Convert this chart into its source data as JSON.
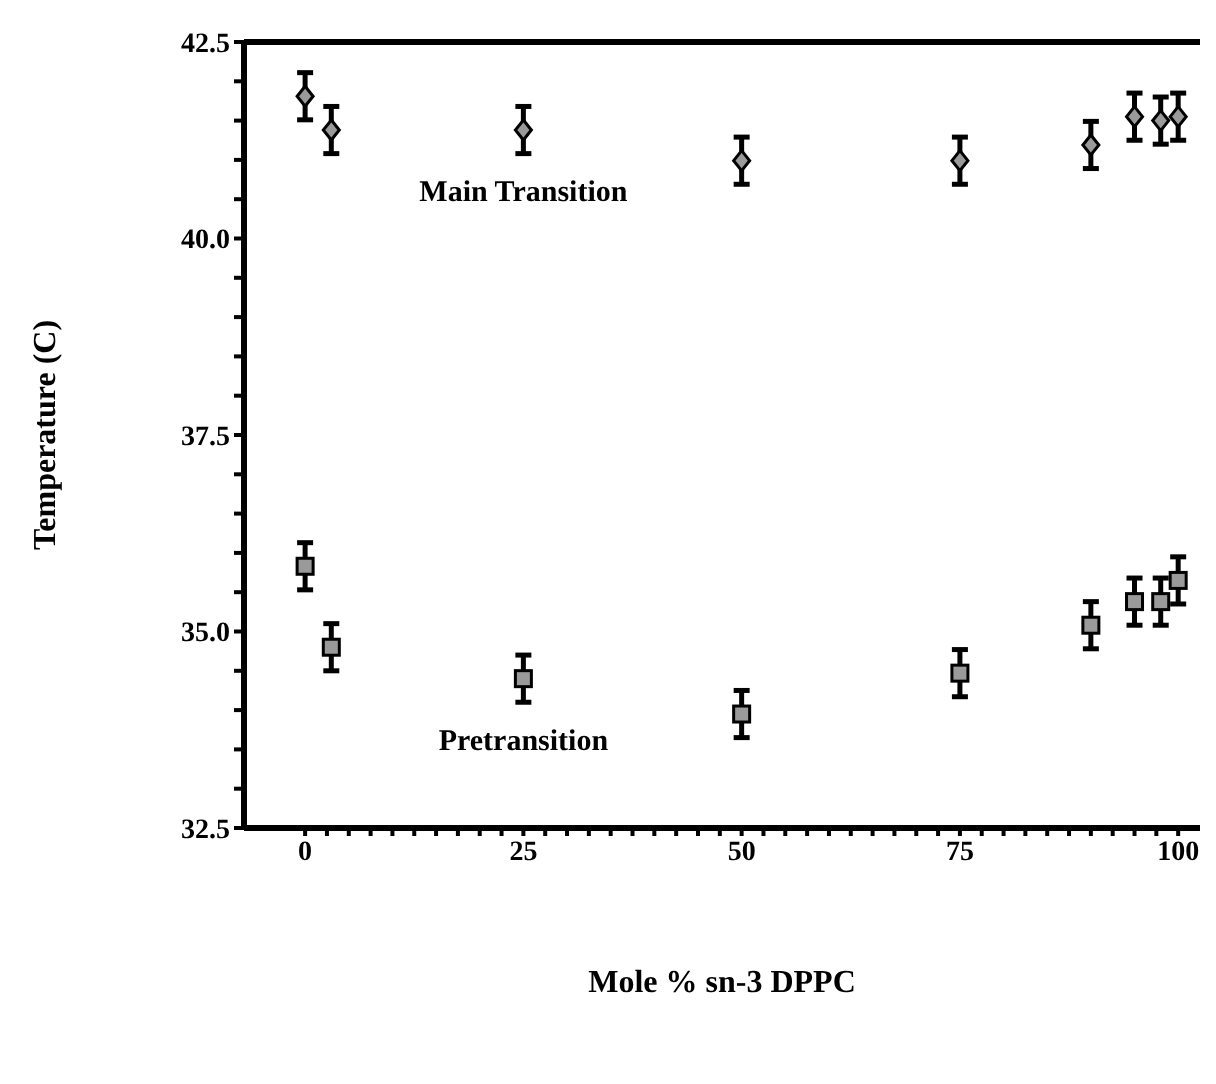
{
  "chart_data": {
    "type": "scatter",
    "xlabel": "Mole % sn-3 DPPC",
    "ylabel": "Temperature (C)",
    "x": [
      0,
      3,
      25,
      50,
      75,
      90,
      95,
      98,
      100
    ],
    "series": [
      {
        "name": "Main Transition",
        "color": "#000000",
        "marker": "diamond",
        "values": [
          41.81,
          41.38,
          41.38,
          40.99,
          40.99,
          41.19,
          41.55,
          41.5,
          41.55
        ],
        "errors": [
          0.3,
          0.3,
          0.3,
          0.3,
          0.3,
          0.3,
          0.3,
          0.3,
          0.3
        ]
      },
      {
        "name": "Pretransition",
        "color": "#000000",
        "marker": "square",
        "values": [
          35.83,
          34.8,
          34.4,
          33.95,
          34.47,
          35.08,
          35.38,
          35.38,
          35.65
        ],
        "errors": [
          0.3,
          0.3,
          0.3,
          0.3,
          0.3,
          0.3,
          0.3,
          0.3,
          0.3
        ]
      }
    ],
    "xlim": [
      -7,
      102.5
    ],
    "xticks": [
      0,
      {
        "value": 2.5,
        "label": null
      },
      {
        "value": 5,
        "label": null
      },
      {
        "value": 7.5,
        "label": null
      },
      {
        "value": 10,
        "label": null
      },
      {
        "value": 12.5,
        "label": null
      },
      {
        "value": 15,
        "label": null
      },
      {
        "value": 17.5,
        "label": null
      },
      {
        "value": 20,
        "label": null
      },
      {
        "value": 22.5,
        "label": null
      },
      25,
      {
        "value": 27.5,
        "label": null
      },
      {
        "value": 30,
        "label": null
      },
      {
        "value": 32.5,
        "label": null
      },
      {
        "value": 35,
        "label": null
      },
      {
        "value": 37.5,
        "label": null
      },
      {
        "value": 40,
        "label": null
      },
      {
        "value": 42.5,
        "label": null
      },
      {
        "value": 45,
        "label": null
      },
      {
        "value": 47.5,
        "label": null
      },
      50,
      {
        "value": 52.5,
        "label": null
      },
      {
        "value": 55,
        "label": null
      },
      {
        "value": 57.5,
        "label": null
      },
      {
        "value": 60,
        "label": null
      },
      {
        "value": 62.5,
        "label": null
      },
      {
        "value": 65,
        "label": null
      },
      {
        "value": 67.5,
        "label": null
      },
      {
        "value": 70,
        "label": null
      },
      {
        "value": 72.5,
        "label": null
      },
      75,
      {
        "value": 77.5,
        "label": null
      },
      {
        "value": 80,
        "label": null
      },
      {
        "value": 82.5,
        "label": null
      },
      {
        "value": 85,
        "label": null
      },
      {
        "value": 87.5,
        "label": null
      },
      {
        "value": 90,
        "label": null
      },
      {
        "value": 92.5,
        "label": null
      },
      {
        "value": 95,
        "label": null
      },
      {
        "value": 97.5,
        "label": null
      },
      100
    ],
    "ylim": [
      32.5,
      42.5
    ],
    "yticks": [
      32.5,
      {
        "value": 33,
        "label": null
      },
      {
        "value": 33.5,
        "label": null
      },
      {
        "value": 34,
        "label": null
      },
      {
        "value": 34.5,
        "label": null
      },
      {
        "value": 35,
        "label": "35.0"
      },
      {
        "value": 35.5,
        "label": null
      },
      {
        "value": 36,
        "label": null
      },
      {
        "value": 36.5,
        "label": null
      },
      {
        "value": 37,
        "label": null
      },
      37.5,
      {
        "value": 38,
        "label": null
      },
      {
        "value": 38.5,
        "label": null
      },
      {
        "value": 39,
        "label": null
      },
      {
        "value": 39.5,
        "label": null
      },
      {
        "value": 40,
        "label": "40.0"
      },
      {
        "value": 40.5,
        "label": null
      },
      {
        "value": 41,
        "label": null
      },
      {
        "value": 41.5,
        "label": null
      },
      {
        "value": 42,
        "label": null
      },
      42.5
    ],
    "grid": false,
    "legend": false
  }
}
